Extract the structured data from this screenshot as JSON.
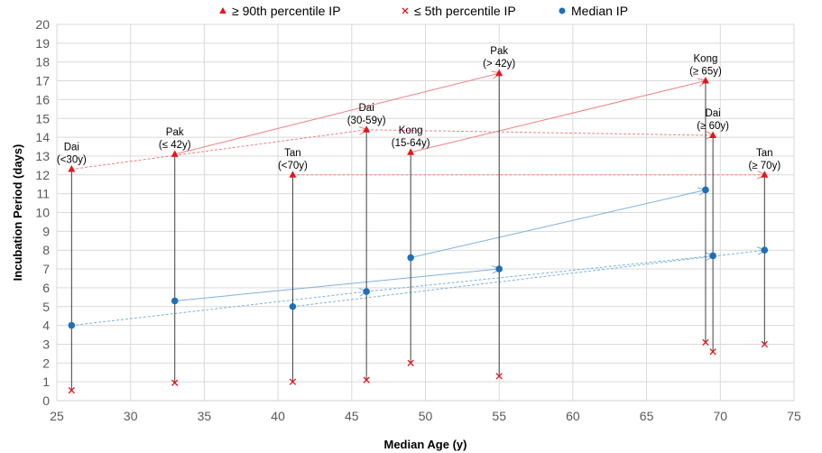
{
  "chart_data": {
    "type": "scatter",
    "xlabel": "Median Age (y)",
    "ylabel": "Incubation Period (days)",
    "xlim": [
      25,
      75
    ],
    "ylim": [
      0,
      20
    ],
    "xticks": [
      "25",
      "30",
      "35",
      "40",
      "45",
      "50",
      "55",
      "60",
      "65",
      "70",
      "75"
    ],
    "yticks": [
      "0",
      "1",
      "2",
      "3",
      "4",
      "5",
      "6",
      "7",
      "8",
      "9",
      "10",
      "11",
      "12",
      "13",
      "14",
      "15",
      "16",
      "17",
      "18",
      "19",
      "20"
    ],
    "grid": true,
    "legend_position": "top",
    "legend": [
      {
        "label": "≥ 90th percentile IP",
        "marker": "triangle",
        "color": "#e8141b"
      },
      {
        "label": "≤ 5th percentile IP",
        "marker": "x",
        "color": "#e8141b"
      },
      {
        "label": "Median IP",
        "marker": "circle",
        "color": "#1f6fb8"
      }
    ],
    "groups": [
      {
        "label1": "Dai",
        "label2": "(<30y)",
        "age": 26,
        "p90": 12.3,
        "median": 4.0,
        "p5": 0.55
      },
      {
        "label1": "Pak",
        "label2": "(≤ 42y)",
        "age": 33,
        "p90": 13.1,
        "median": 5.3,
        "p5": 0.95
      },
      {
        "label1": "Tan",
        "label2": "(<70y)",
        "age": 41,
        "p90": 12.0,
        "median": 5.0,
        "p5": 1.0
      },
      {
        "label1": "Dai",
        "label2": "(30-59y)",
        "age": 46,
        "p90": 14.4,
        "median": 5.8,
        "p5": 1.1
      },
      {
        "label1": "Kong",
        "label2": "(15-64y)",
        "age": 49,
        "p90": 13.2,
        "median": 7.6,
        "p5": 2.0
      },
      {
        "label1": "Pak",
        "label2": "(> 42y)",
        "age": 55,
        "p90": 17.4,
        "median": 7.0,
        "p5": 1.3
      },
      {
        "label1": "Kong",
        "label2": "(≥ 65y)",
        "age": 69,
        "p90": 17.0,
        "median": 11.2,
        "p5": 3.1
      },
      {
        "label1": "Dai",
        "label2": "(≥ 60y)",
        "age": 69.5,
        "p90": 14.1,
        "median": 7.7,
        "p5": 2.6
      },
      {
        "label1": "Tan",
        "label2": "(≥ 70y)",
        "age": 73,
        "p90": 12.0,
        "median": 8.0,
        "p5": 3.0
      }
    ],
    "connections": [
      {
        "from": 0,
        "to": 3,
        "style": "dotted"
      },
      {
        "from": 3,
        "to": 7,
        "style": "dotted"
      },
      {
        "from": 1,
        "to": 5,
        "style": "solid"
      },
      {
        "from": 2,
        "to": 8,
        "style": "dotted"
      },
      {
        "from": 4,
        "to": 6,
        "style": "solid"
      }
    ],
    "colors": {
      "p90": "#e8141b",
      "p90_link": "#f08080",
      "median": "#1f6fb8",
      "median_link": "#7fb2dd",
      "range_line": "#404040",
      "grid": "#d9d9d9"
    }
  }
}
